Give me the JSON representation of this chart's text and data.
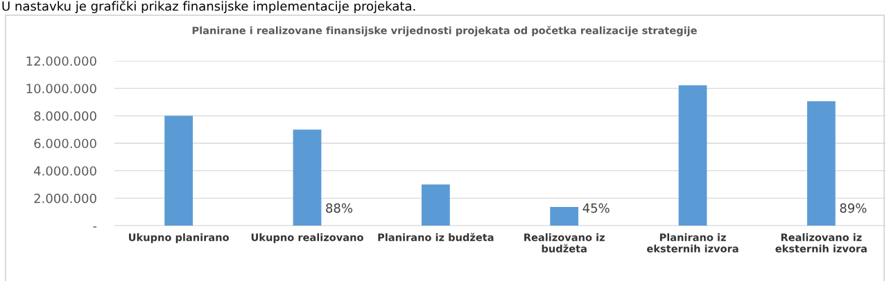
{
  "chart_data": {
    "type": "bar",
    "title": "Planirane i realizovane finansijske vrijednosti projekata od početka realizacije strategije",
    "categories": [
      "Ukupno planirano",
      "Ukupno realizovano",
      "Planirano iz budžeta",
      "Realizovano iz\nbudžeta",
      "Planirano iz\neksternih izvora",
      "Realizovano iz\neksternih izvora"
    ],
    "values": [
      8000000,
      7000000,
      3000000,
      1360000,
      10220000,
      9060000
    ],
    "color": "#5b9bd5",
    "ylim": [
      0,
      12000000
    ],
    "yticks": [
      {
        "value": 0,
        "label": "-"
      },
      {
        "value": 2000000,
        "label": "2.000.000"
      },
      {
        "value": 4000000,
        "label": "4.000.000"
      },
      {
        "value": 6000000,
        "label": "6.000.000"
      },
      {
        "value": 8000000,
        "label": "8.000.000"
      },
      {
        "value": 10000000,
        "label": "10.000.000"
      },
      {
        "value": 12000000,
        "label": "12.000.000"
      }
    ],
    "grid": "y",
    "annotations": [
      "U nastavku je grafički prikaz finansijske implementacije projekata.",
      "88%",
      "45%",
      "89%"
    ]
  }
}
